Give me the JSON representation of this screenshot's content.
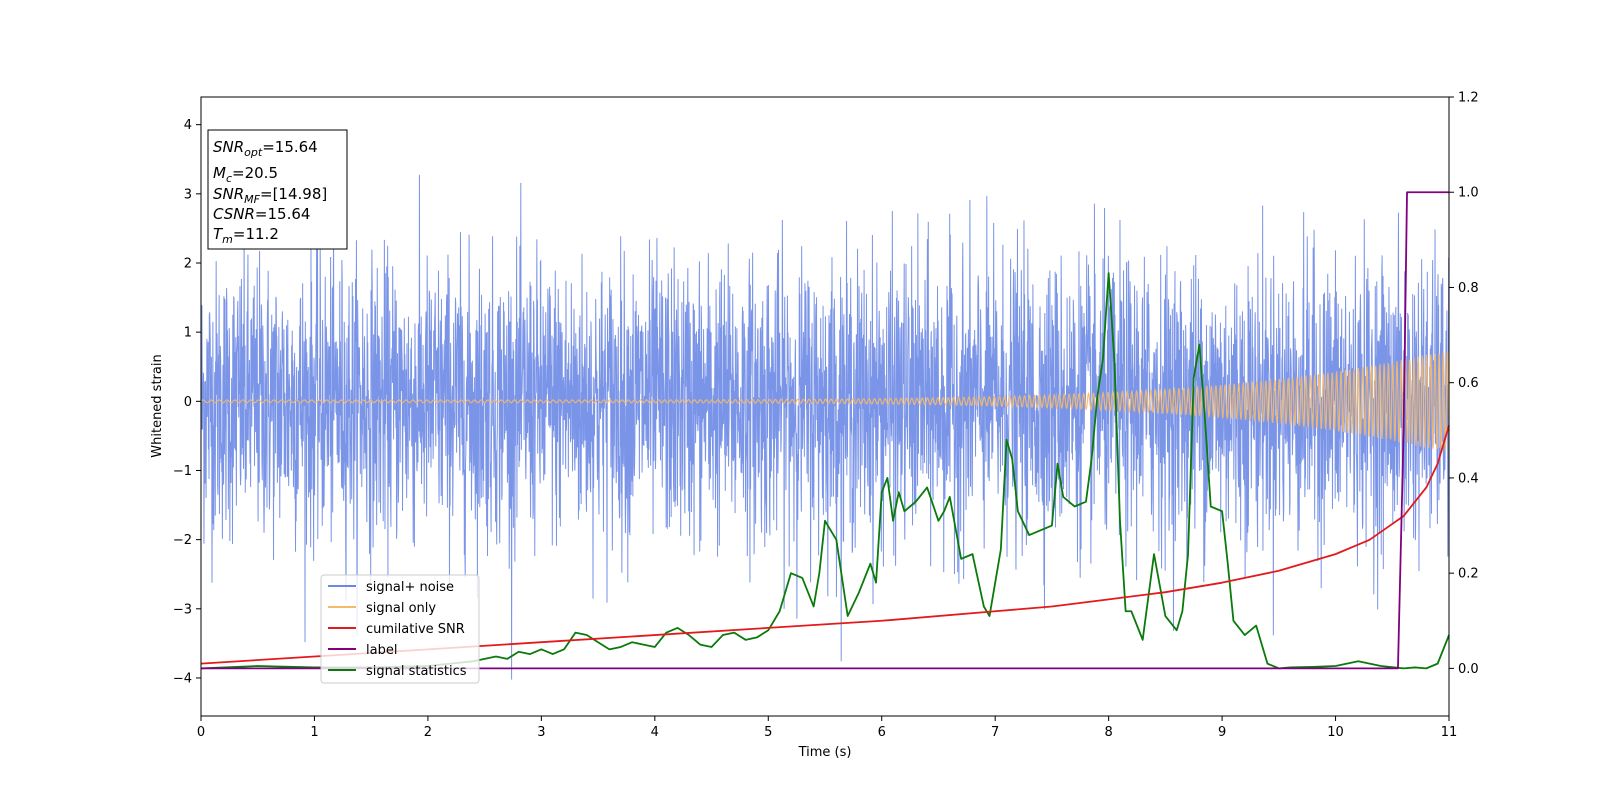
{
  "chart_data": {
    "type": "line",
    "title": "",
    "xlabel": "Time (s)",
    "ylabel": "Whitened strain",
    "xlim": [
      0,
      11
    ],
    "ylim": [
      -4.55,
      4.4
    ],
    "y2lim": [
      -0.1,
      1.2
    ],
    "x_ticks": [
      0,
      1,
      2,
      3,
      4,
      5,
      6,
      7,
      8,
      9,
      10,
      11
    ],
    "y_ticks": [
      -4,
      -3,
      -2,
      -1,
      0,
      1,
      2,
      3,
      4
    ],
    "y2_ticks": [
      "0.0",
      "0.2",
      "0.4",
      "0.6",
      "0.8",
      "1.0",
      "1.2"
    ],
    "grid": false,
    "legend_position": "lower-left",
    "colors": {
      "signal_noise": "#6b88e6",
      "signal_only": "#f5b96a",
      "cumulative_snr": "#e31a1c",
      "label": "#800080",
      "signal_statistics": "#0a7a0a"
    },
    "info_box": {
      "snr_opt": {
        "base": "SNR",
        "sub": "opt",
        "value": "=15.64"
      },
      "mc": {
        "base": "M",
        "sub": "c",
        "value": "=20.5"
      },
      "snr_mf": {
        "base": "SNR",
        "sub": "MF",
        "value": "=[14.98]"
      },
      "csnr": {
        "base": "CSNR",
        "value": "=15.64"
      },
      "tm": {
        "base": "T",
        "sub": "m",
        "value": "=11.2"
      }
    },
    "series": [
      {
        "name": "signal+ noise",
        "axis": "left",
        "style": "noise band",
        "envelope_std": 1.0,
        "envelope_range": [
          -4.15,
          4.0
        ]
      },
      {
        "name": "signal only",
        "axis": "left",
        "style": "chirp",
        "amplitude_start": 0.02,
        "amplitude_end": 0.75
      },
      {
        "name": "cumilative SNR",
        "axis": "right",
        "x": [
          0,
          1,
          2,
          3,
          4,
          5,
          6,
          7,
          7.5,
          8,
          8.5,
          9,
          9.5,
          10,
          10.3,
          10.6,
          10.8,
          10.9,
          11
        ],
        "y": [
          0.01,
          0.025,
          0.04,
          0.055,
          0.07,
          0.085,
          0.1,
          0.12,
          0.13,
          0.145,
          0.16,
          0.18,
          0.205,
          0.24,
          0.27,
          0.32,
          0.38,
          0.43,
          0.51
        ]
      },
      {
        "name": "label",
        "axis": "right",
        "x": [
          0,
          10.55,
          10.6,
          10.63,
          11
        ],
        "y": [
          0.0,
          0.0,
          0.5,
          1.0,
          1.0
        ]
      },
      {
        "name": "signal statistics",
        "axis": "right",
        "x": [
          0,
          0.5,
          1,
          1.5,
          2,
          2.2,
          2.4,
          2.6,
          2.7,
          2.8,
          2.9,
          3.0,
          3.1,
          3.2,
          3.3,
          3.4,
          3.5,
          3.6,
          3.7,
          3.8,
          3.9,
          4.0,
          4.1,
          4.2,
          4.3,
          4.4,
          4.5,
          4.6,
          4.7,
          4.8,
          4.9,
          5.0,
          5.1,
          5.2,
          5.3,
          5.4,
          5.45,
          5.5,
          5.6,
          5.7,
          5.8,
          5.9,
          5.95,
          6.0,
          6.05,
          6.1,
          6.15,
          6.2,
          6.3,
          6.4,
          6.5,
          6.55,
          6.6,
          6.7,
          6.8,
          6.9,
          6.95,
          7.0,
          7.05,
          7.1,
          7.15,
          7.2,
          7.3,
          7.4,
          7.5,
          7.55,
          7.6,
          7.7,
          7.8,
          7.85,
          7.9,
          7.95,
          8.0,
          8.05,
          8.1,
          8.15,
          8.2,
          8.3,
          8.4,
          8.5,
          8.6,
          8.65,
          8.7,
          8.75,
          8.8,
          8.85,
          8.9,
          9.0,
          9.05,
          9.1,
          9.2,
          9.3,
          9.4,
          9.5,
          9.6,
          9.8,
          10.0,
          10.2,
          10.4,
          10.6,
          10.7,
          10.8,
          10.9,
          11.0
        ],
        "y": [
          0.0,
          0.005,
          0.002,
          0.002,
          0.005,
          0.01,
          0.015,
          0.025,
          0.02,
          0.035,
          0.03,
          0.04,
          0.03,
          0.04,
          0.075,
          0.07,
          0.055,
          0.04,
          0.045,
          0.055,
          0.05,
          0.045,
          0.075,
          0.085,
          0.07,
          0.05,
          0.045,
          0.07,
          0.075,
          0.06,
          0.065,
          0.08,
          0.12,
          0.2,
          0.19,
          0.13,
          0.2,
          0.31,
          0.27,
          0.11,
          0.16,
          0.22,
          0.18,
          0.37,
          0.4,
          0.31,
          0.37,
          0.33,
          0.35,
          0.38,
          0.31,
          0.33,
          0.36,
          0.23,
          0.24,
          0.13,
          0.11,
          0.18,
          0.25,
          0.48,
          0.44,
          0.33,
          0.28,
          0.29,
          0.3,
          0.43,
          0.36,
          0.34,
          0.35,
          0.44,
          0.57,
          0.65,
          0.83,
          0.65,
          0.31,
          0.12,
          0.12,
          0.06,
          0.24,
          0.11,
          0.08,
          0.12,
          0.24,
          0.61,
          0.68,
          0.52,
          0.34,
          0.33,
          0.22,
          0.1,
          0.07,
          0.09,
          0.01,
          0.0,
          0.002,
          0.003,
          0.005,
          0.015,
          0.005,
          0.0,
          0.002,
          0.0,
          0.01,
          0.07
        ]
      }
    ]
  }
}
